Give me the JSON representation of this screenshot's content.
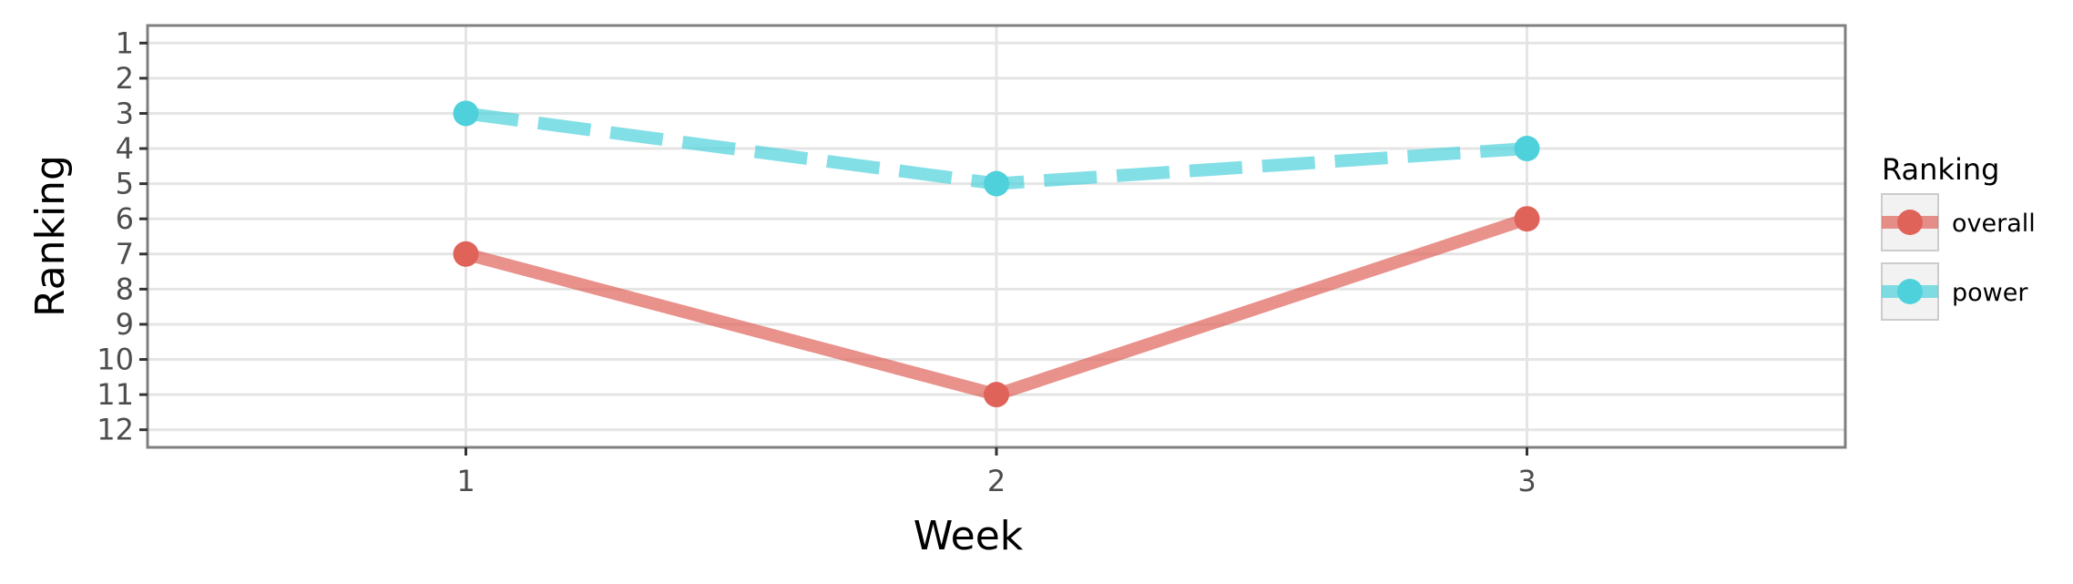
{
  "chart_data": {
    "type": "line",
    "xlabel": "Week",
    "ylabel": "Ranking",
    "x": [
      1,
      2,
      3
    ],
    "xlim": [
      0.4,
      3.6
    ],
    "ylim": [
      12.5,
      0.5
    ],
    "y_reversed": true,
    "x_ticks": [
      "1",
      "2",
      "3"
    ],
    "y_ticks": [
      "1",
      "2",
      "3",
      "4",
      "5",
      "6",
      "7",
      "8",
      "9",
      "10",
      "11",
      "12"
    ],
    "grid": true,
    "legend": {
      "title": "Ranking",
      "position": "right"
    },
    "series": [
      {
        "name": "overall",
        "values": [
          7,
          11,
          6
        ],
        "color": "#e0635a",
        "line_style": "solid"
      },
      {
        "name": "power",
        "values": [
          3,
          5,
          4
        ],
        "color": "#4fd1db",
        "line_style": "dashed"
      }
    ]
  }
}
